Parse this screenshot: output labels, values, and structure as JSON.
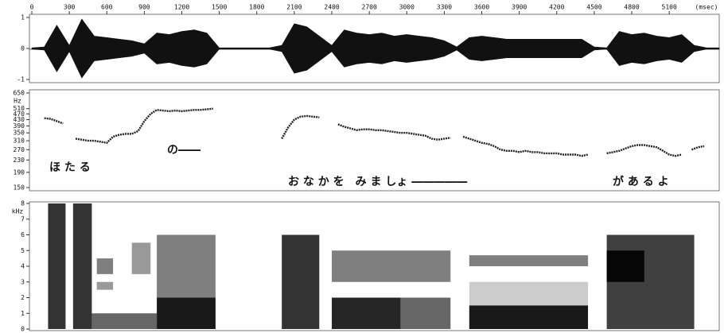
{
  "chart_data": [
    {
      "type": "area",
      "xlim": [
        0,
        5500
      ],
      "xticks": [
        0,
        300,
        600,
        900,
        1200,
        1500,
        1800,
        2100,
        2400,
        2700,
        3000,
        3300,
        3600,
        3900,
        4200,
        4500,
        4800,
        5100
      ],
      "xlabel": "(msec)",
      "ylim": [
        -1.05,
        1.05
      ],
      "yticks": [
        -1,
        0,
        1
      ],
      "color": "#111111",
      "x": [
        0,
        100,
        200,
        300,
        400,
        500,
        600,
        700,
        800,
        900,
        1000,
        1100,
        1200,
        1300,
        1400,
        1500,
        1600,
        1700,
        1800,
        1900,
        2000,
        2100,
        2200,
        2300,
        2400,
        2500,
        2600,
        2700,
        2800,
        2900,
        3000,
        3100,
        3200,
        3300,
        3400,
        3500,
        3600,
        3700,
        3800,
        3900,
        4000,
        4100,
        4200,
        4300,
        4400,
        4500,
        4600,
        4700,
        4800,
        4900,
        5000,
        5100,
        5200,
        5300,
        5400,
        5500
      ],
      "values": [
        0.02,
        0.05,
        0.75,
        0.1,
        0.95,
        0.4,
        0.35,
        0.3,
        0.25,
        0.15,
        0.5,
        0.45,
        0.55,
        0.6,
        0.5,
        0.02,
        0.02,
        0.02,
        0.02,
        0.02,
        0.1,
        0.8,
        0.7,
        0.4,
        0.1,
        0.6,
        0.5,
        0.45,
        0.5,
        0.4,
        0.45,
        0.4,
        0.35,
        0.25,
        0.05,
        0.35,
        0.4,
        0.35,
        0.3,
        0.3,
        0.3,
        0.3,
        0.3,
        0.3,
        0.3,
        0.05,
        0.02,
        0.55,
        0.45,
        0.5,
        0.4,
        0.35,
        0.45,
        0.1,
        0.02,
        0.02
      ]
    },
    {
      "type": "line",
      "ylim": [
        150,
        650
      ],
      "log": true,
      "yticks": [
        150,
        190,
        230,
        270,
        310,
        350,
        390,
        430,
        470,
        510,
        650
      ],
      "ylabel": "Hz",
      "color": "#222222",
      "x": [
        100,
        150,
        200,
        250,
        300,
        350,
        400,
        450,
        500,
        550,
        600,
        650,
        700,
        750,
        800,
        850,
        900,
        950,
        1000,
        1050,
        1100,
        1150,
        1200,
        1250,
        1300,
        1350,
        1400,
        1450,
        1500,
        2000,
        2050,
        2100,
        2150,
        2200,
        2250,
        2300,
        2350,
        2450,
        2500,
        2550,
        2600,
        2650,
        2700,
        2750,
        2800,
        2850,
        2900,
        2950,
        3000,
        3050,
        3100,
        3150,
        3200,
        3250,
        3300,
        3350,
        3400,
        3450,
        3500,
        3550,
        3600,
        3650,
        3700,
        3750,
        3800,
        3850,
        3900,
        3950,
        4000,
        4050,
        4100,
        4150,
        4200,
        4250,
        4300,
        4350,
        4400,
        4450,
        4500,
        4600,
        4650,
        4700,
        4750,
        4800,
        4850,
        4900,
        4950,
        5000,
        5050,
        5100,
        5150,
        5200,
        5250,
        5280,
        5330,
        5380
      ],
      "values": [
        440,
        435,
        420,
        405,
        null,
        320,
        315,
        310,
        310,
        305,
        300,
        330,
        340,
        345,
        345,
        360,
        420,
        470,
        500,
        495,
        490,
        495,
        490,
        495,
        500,
        500,
        505,
        510,
        null,
        320,
        380,
        430,
        450,
        455,
        450,
        445,
        null,
        400,
        385,
        375,
        365,
        370,
        370,
        365,
        365,
        360,
        355,
        350,
        350,
        345,
        340,
        335,
        320,
        315,
        320,
        325,
        null,
        330,
        320,
        310,
        300,
        295,
        285,
        270,
        265,
        265,
        260,
        265,
        260,
        260,
        255,
        255,
        255,
        250,
        250,
        250,
        245,
        250,
        null,
        255,
        260,
        265,
        275,
        285,
        290,
        290,
        285,
        280,
        265,
        250,
        245,
        250,
        null,
        270,
        280,
        285
      ],
      "annotations": [
        "ほ た る",
        "の――",
        "お な か を　み ま しょ ―――――",
        "が あ る よ"
      ]
    },
    {
      "type": "heatmap",
      "ylim": [
        0,
        8
      ],
      "yticks": [
        0,
        1,
        2,
        3,
        4,
        5,
        6,
        7,
        8
      ],
      "ylabel": "kHz",
      "color": "#000000",
      "regions": [
        {
          "start": 130,
          "end": 270,
          "low": 0,
          "high": 8,
          "intensity": 0.8
        },
        {
          "start": 330,
          "end": 480,
          "low": 0,
          "high": 8,
          "intensity": 0.8
        },
        {
          "start": 480,
          "end": 1000,
          "low": 0,
          "high": 1,
          "intensity": 0.6
        },
        {
          "start": 520,
          "end": 650,
          "low": 3.5,
          "high": 4.5,
          "intensity": 0.5
        },
        {
          "start": 520,
          "end": 650,
          "low": 2.5,
          "high": 3,
          "intensity": 0.4
        },
        {
          "start": 800,
          "end": 950,
          "low": 3.5,
          "high": 5.5,
          "intensity": 0.4
        },
        {
          "start": 1000,
          "end": 1470,
          "low": 0,
          "high": 2,
          "intensity": 0.9
        },
        {
          "start": 1000,
          "end": 1470,
          "low": 2,
          "high": 6,
          "intensity": 0.5
        },
        {
          "start": 2000,
          "end": 2300,
          "low": 0,
          "high": 6,
          "intensity": 0.8
        },
        {
          "start": 2400,
          "end": 2950,
          "low": 0,
          "high": 2,
          "intensity": 0.85
        },
        {
          "start": 2400,
          "end": 3350,
          "low": 3,
          "high": 5,
          "intensity": 0.5
        },
        {
          "start": 2950,
          "end": 3350,
          "low": 0,
          "high": 2,
          "intensity": 0.6
        },
        {
          "start": 3500,
          "end": 4450,
          "low": 0,
          "high": 1.5,
          "intensity": 0.9
        },
        {
          "start": 3500,
          "end": 4450,
          "low": 4,
          "high": 4.7,
          "intensity": 0.5
        },
        {
          "start": 3500,
          "end": 4450,
          "low": 1.5,
          "high": 3,
          "intensity": 0.2
        },
        {
          "start": 4600,
          "end": 5300,
          "low": 0,
          "high": 6,
          "intensity": 0.75
        },
        {
          "start": 4600,
          "end": 4900,
          "low": 3,
          "high": 5,
          "intensity": 0.9
        }
      ]
    }
  ]
}
